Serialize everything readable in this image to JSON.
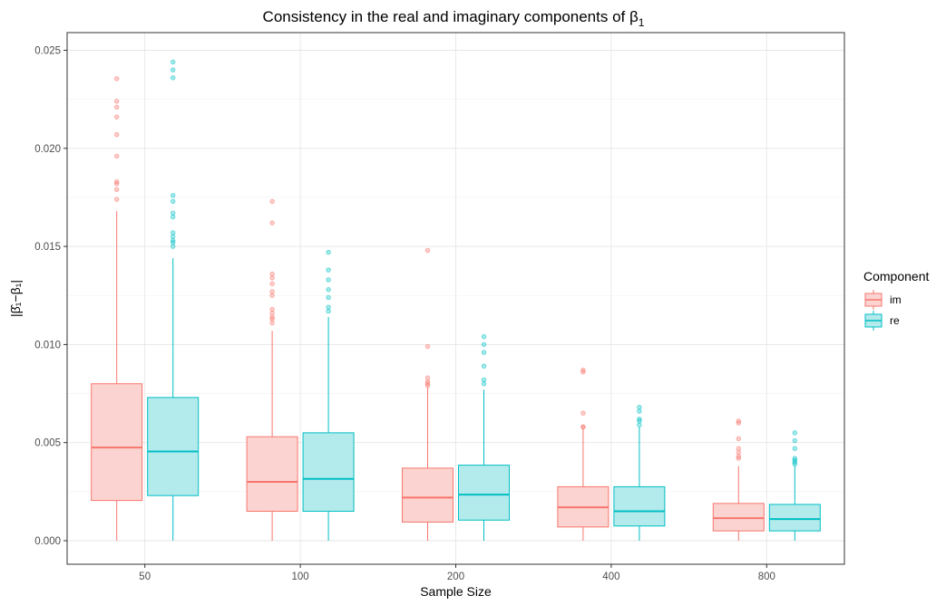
{
  "chart_data": {
    "type": "box",
    "title": "Consistency in the real and imaginary components of β",
    "title_subscript": "1",
    "xlabel": "Sample Size",
    "ylabel": "|β̂₁−β₁|",
    "categories": [
      "50",
      "100",
      "200",
      "400",
      "800"
    ],
    "yticks": [
      "0.000",
      "0.005",
      "0.010",
      "0.015",
      "0.020",
      "0.025"
    ],
    "ylim": [
      -0.0012,
      0.0259
    ],
    "grid": true,
    "legend": {
      "title": "Component",
      "position": "right"
    },
    "series": [
      {
        "name": "im",
        "color": "#F8766D",
        "fill": "#FBD4D1",
        "boxes": [
          {
            "min": 0.0,
            "q1": 0.00205,
            "median": 0.00475,
            "q3": 0.008,
            "max": 0.0168,
            "outliers": [
              0.02355,
              0.0224,
              0.0221,
              0.0216,
              0.0207,
              0.0196,
              0.0183,
              0.0182,
              0.0179,
              0.0174
            ]
          },
          {
            "min": 0.0,
            "q1": 0.0015,
            "median": 0.003,
            "q3": 0.0053,
            "max": 0.0107,
            "outliers": [
              0.0173,
              0.0162,
              0.0136,
              0.0134,
              0.0131,
              0.0127,
              0.0125,
              0.0118,
              0.0116,
              0.0114,
              0.0113,
              0.0111
            ]
          },
          {
            "min": 0.0,
            "q1": 0.00095,
            "median": 0.0022,
            "q3": 0.0037,
            "max": 0.0078,
            "outliers": [
              0.0148,
              0.0099,
              0.0083,
              0.0081,
              0.008,
              0.0079
            ]
          },
          {
            "min": 0.0,
            "q1": 0.0007,
            "median": 0.0017,
            "q3": 0.00275,
            "max": 0.0057,
            "outliers": [
              0.0087,
              0.0086,
              0.0065,
              0.0058,
              0.0058
            ]
          },
          {
            "min": 0.0,
            "q1": 0.0005,
            "median": 0.00115,
            "q3": 0.0019,
            "max": 0.0038,
            "outliers": [
              0.0061,
              0.006,
              0.0052,
              0.0047,
              0.0045,
              0.0043,
              0.0042
            ]
          }
        ]
      },
      {
        "name": "re",
        "color": "#00BFC4",
        "fill": "#B3EAEB",
        "boxes": [
          {
            "min": 0.0,
            "q1": 0.0023,
            "median": 0.00455,
            "q3": 0.0073,
            "max": 0.0144,
            "outliers": [
              0.0244,
              0.024,
              0.0236,
              0.0176,
              0.0173,
              0.0167,
              0.0165,
              0.0157,
              0.0155,
              0.0153,
              0.0152,
              0.015
            ]
          },
          {
            "min": 0.0,
            "q1": 0.0015,
            "median": 0.00315,
            "q3": 0.0055,
            "max": 0.0114,
            "outliers": [
              0.0147,
              0.0138,
              0.0133,
              0.0128,
              0.0124,
              0.0119,
              0.0117
            ]
          },
          {
            "min": 0.0,
            "q1": 0.00105,
            "median": 0.00235,
            "q3": 0.00385,
            "max": 0.0077,
            "outliers": [
              0.0104,
              0.01,
              0.0096,
              0.0089,
              0.0082,
              0.008
            ]
          },
          {
            "min": 0.0,
            "q1": 0.00075,
            "median": 0.0015,
            "q3": 0.00275,
            "max": 0.0058,
            "outliers": [
              0.0068,
              0.0066,
              0.0062,
              0.0061,
              0.0059
            ]
          },
          {
            "min": 0.0,
            "q1": 0.0005,
            "median": 0.0011,
            "q3": 0.00185,
            "max": 0.0038,
            "outliers": [
              0.0055,
              0.0051,
              0.0047,
              0.0042,
              0.0041,
              0.004,
              0.0039
            ]
          }
        ]
      }
    ]
  }
}
